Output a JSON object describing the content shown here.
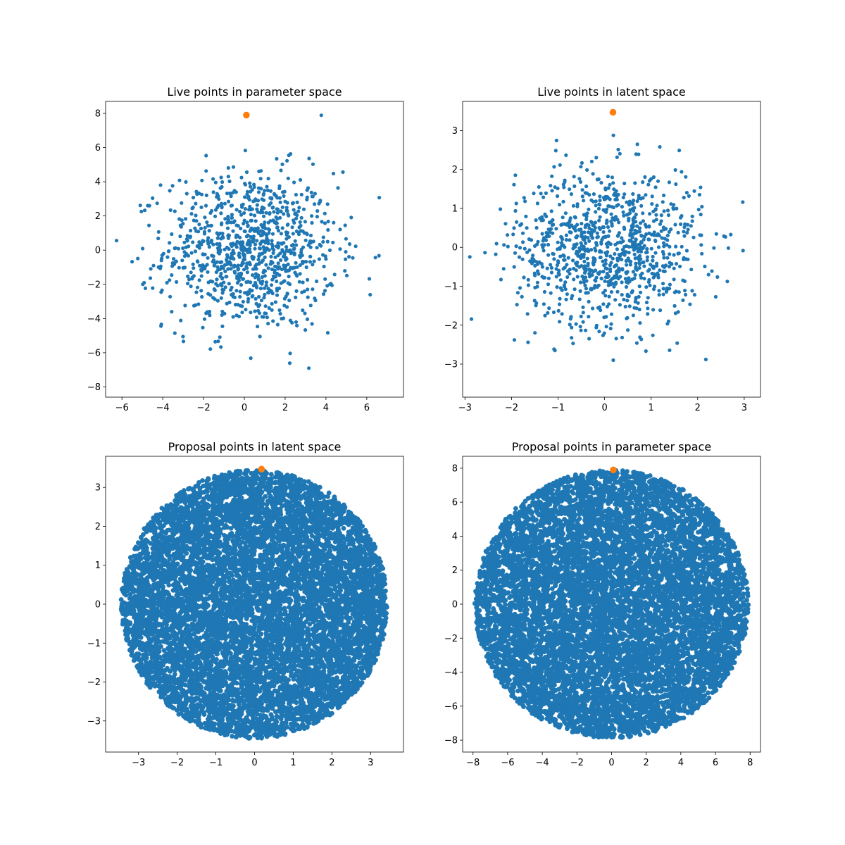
{
  "colors": {
    "points": "#1f77b4",
    "highlight": "#ff7f0e"
  },
  "chart_data": [
    {
      "type": "scatter",
      "title": "Live points in parameter space",
      "xlim": [
        -6.8,
        7.8
      ],
      "ylim": [
        -8.6,
        8.7
      ],
      "xticks": [
        -6,
        -4,
        -2,
        0,
        2,
        4,
        6
      ],
      "yticks": [
        -8,
        -6,
        -4,
        -2,
        0,
        2,
        4,
        6,
        8
      ],
      "series": [
        {
          "kind": "gaussian",
          "count": 1000,
          "center": [
            0.3,
            0.0
          ],
          "sigma": [
            2.1,
            2.3
          ],
          "limit": [
            7.2,
            8.0
          ],
          "color_key": "points"
        }
      ],
      "highlight": [
        0.1,
        7.9
      ]
    },
    {
      "type": "scatter",
      "title": "Live points in latent space",
      "xlim": [
        -3.05,
        3.35
      ],
      "ylim": [
        -3.85,
        3.75
      ],
      "xticks": [
        -3,
        -2,
        -1,
        0,
        1,
        2,
        3
      ],
      "yticks": [
        -3,
        -2,
        -1,
        0,
        1,
        2,
        3
      ],
      "series": [
        {
          "kind": "gaussian",
          "count": 1000,
          "center": [
            0.1,
            0.0
          ],
          "sigma": [
            1.0,
            1.0
          ],
          "limit": [
            3.1,
            3.5
          ],
          "color_key": "points"
        }
      ],
      "highlight": [
        0.18,
        3.47
      ]
    },
    {
      "type": "scatter",
      "title": "Proposal points in latent space",
      "xlim": [
        -3.85,
        3.85
      ],
      "ylim": [
        -3.8,
        3.8
      ],
      "xticks": [
        -3,
        -2,
        -1,
        0,
        1,
        2,
        3
      ],
      "yticks": [
        -3,
        -2,
        -1,
        0,
        1,
        2,
        3
      ],
      "series": [
        {
          "kind": "disc",
          "count": 9000,
          "center": [
            0.0,
            0.0
          ],
          "radius": [
            3.45,
            3.45
          ],
          "color_key": "points"
        }
      ],
      "highlight": [
        0.18,
        3.47
      ]
    },
    {
      "type": "scatter",
      "title": "Proposal points in parameter space",
      "xlim": [
        -8.6,
        8.6
      ],
      "ylim": [
        -8.7,
        8.7
      ],
      "xticks": [
        -8,
        -6,
        -4,
        -2,
        0,
        2,
        4,
        6,
        8
      ],
      "yticks": [
        -8,
        -6,
        -4,
        -2,
        0,
        2,
        4,
        6,
        8
      ],
      "series": [
        {
          "kind": "disc",
          "count": 9000,
          "center": [
            0.0,
            0.0
          ],
          "radius": [
            7.9,
            7.9
          ],
          "color_key": "points"
        }
      ],
      "highlight": [
        0.1,
        7.9
      ]
    }
  ]
}
